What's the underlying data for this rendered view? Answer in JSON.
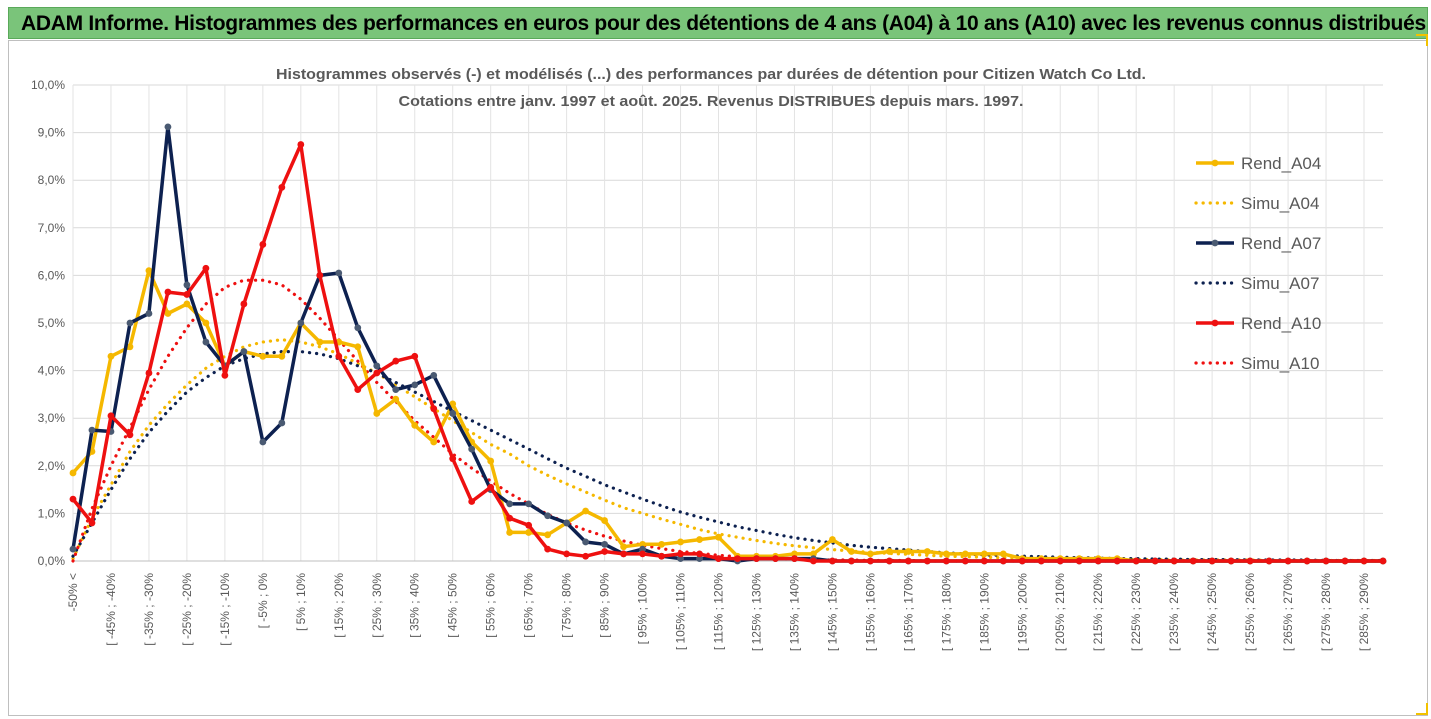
{
  "header": {
    "title": "ADAM Informe. Histogrammes des performances en euros pour des détentions de 4 ans (A04) à 10 ans (A10) avec les revenus connus distribués"
  },
  "colors": {
    "banner": "#7ac47a",
    "A04": "#f5b800",
    "A07": "#0d2150",
    "A10": "#ee1010"
  },
  "chart_data": {
    "type": "line",
    "title": "Histogrammes observés (-) et modélisés (...) des performances par durées de détention pour Citizen Watch Co Ltd.",
    "subtitle": "Cotations entre janv. 1997 et août. 2025. Revenus DISTRIBUES depuis mars. 1997.",
    "ylim": [
      0,
      10
    ],
    "yticks": [
      "0,0%",
      "1,0%",
      "2,0%",
      "3,0%",
      "4,0%",
      "5,0%",
      "6,0%",
      "7,0%",
      "8,0%",
      "9,0%",
      "10,0%"
    ],
    "grid": true,
    "legend_position": "right",
    "x_labels": [
      "-50% <",
      "[ -45% ; -40%",
      "[ -35% ; -30%",
      "[ -25% ; -20%",
      "[ -15% ; -10%",
      "[ -5% ; 0%",
      "[ 5% ; 10%",
      "[ 15% ; 20%",
      "[ 25% ; 30%",
      "[ 35% ; 40%",
      "[ 45% ; 50%",
      "[ 55% ; 60%",
      "[ 65% ; 70%",
      "[ 75% ; 80%",
      "[ 85% ; 90%",
      "[ 95% ; 100%",
      "[ 105% ; 110%",
      "[ 115% ; 120%",
      "[ 125% ; 130%",
      "[ 135% ; 140%",
      "[ 145% ; 150%",
      "[ 155% ; 160%",
      "[ 165% ; 170%",
      "[ 175% ; 180%",
      "[ 185% ; 190%",
      "[ 195% ; 200%",
      "[ 205% ; 210%",
      "[ 215% ; 220%",
      "[ 225% ; 230%",
      "[ 235% ; 240%",
      "[ 245% ; 250%",
      "[ 255% ; 260%",
      "[ 265% ; 270%",
      "[ 275% ; 280%",
      "[ 285% ; 290%"
    ],
    "series": [
      {
        "name": "Rend_A04",
        "style": "solid",
        "color": "#f5b800",
        "values": [
          1.85,
          2.3,
          4.3,
          4.5,
          6.1,
          5.2,
          5.4,
          5.0,
          4.1,
          4.4,
          4.3,
          4.3,
          5.0,
          4.6,
          4.6,
          4.5,
          3.1,
          3.4,
          2.85,
          2.5,
          3.3,
          2.5,
          2.1,
          0.6,
          0.6,
          0.55,
          0.8,
          1.05,
          0.85,
          0.3,
          0.35,
          0.35,
          0.4,
          0.45,
          0.5,
          0.1,
          0.1,
          0.1,
          0.15,
          0.15,
          0.45,
          0.2,
          0.15,
          0.2,
          0.2,
          0.2,
          0.15,
          0.15,
          0.15,
          0.15,
          0.05,
          0.05,
          0.05,
          0.05,
          0.05,
          0.05,
          0.0,
          0.0,
          0.0,
          0.0,
          0.0,
          0.0,
          0.0,
          0.0,
          0.0,
          0.0,
          0.0,
          0.0,
          0.0,
          0.0
        ]
      },
      {
        "name": "Simu_A04",
        "style": "dotted",
        "color": "#f5b800",
        "values": [
          0.05,
          0.9,
          1.6,
          2.3,
          2.85,
          3.3,
          3.7,
          4.05,
          4.3,
          4.5,
          4.6,
          4.65,
          4.6,
          4.5,
          4.35,
          4.15,
          3.95,
          3.7,
          3.45,
          3.2,
          2.95,
          2.7,
          2.45,
          2.25,
          2.0,
          1.8,
          1.62,
          1.45,
          1.28,
          1.12,
          1.0,
          0.88,
          0.77,
          0.66,
          0.57,
          0.5,
          0.43,
          0.37,
          0.32,
          0.28,
          0.24,
          0.21,
          0.18,
          0.16,
          0.14,
          0.12,
          0.1,
          0.09,
          0.08,
          0.07,
          0.06,
          0.05,
          0.05,
          0.04,
          0.04,
          0.03,
          0.03,
          0.03,
          0.02,
          0.02,
          0.02,
          0.02,
          0.02,
          0.01,
          0.01,
          0.01,
          0.01,
          0.01,
          0.01,
          0.01
        ]
      },
      {
        "name": "Rend_A07",
        "style": "solid",
        "color": "#0d2150",
        "values": [
          0.25,
          2.75,
          2.72,
          5.0,
          5.2,
          9.12,
          5.8,
          4.6,
          4.1,
          4.4,
          2.5,
          2.9,
          5.0,
          6.0,
          6.05,
          4.9,
          4.1,
          3.6,
          3.7,
          3.9,
          3.1,
          2.35,
          1.5,
          1.2,
          1.2,
          0.95,
          0.8,
          0.4,
          0.35,
          0.15,
          0.25,
          0.1,
          0.05,
          0.05,
          0.05,
          0.0,
          0.05,
          0.05,
          0.05,
          0.05,
          0.0,
          0.0,
          0.0,
          0.0,
          0.0,
          0.0,
          0.0,
          0.0,
          0.0,
          0.0,
          0.0,
          0.0,
          0.0,
          0.0,
          0.0,
          0.0,
          0.0,
          0.0,
          0.0,
          0.0,
          0.0,
          0.0,
          0.0,
          0.0,
          0.0,
          0.0,
          0.0,
          0.0,
          0.0,
          0.0
        ]
      },
      {
        "name": "Simu_A07",
        "style": "dotted",
        "color": "#0d2150",
        "values": [
          0.1,
          0.8,
          1.5,
          2.15,
          2.7,
          3.15,
          3.55,
          3.85,
          4.1,
          4.25,
          4.35,
          4.4,
          4.4,
          4.35,
          4.25,
          4.1,
          3.95,
          3.75,
          3.55,
          3.35,
          3.15,
          2.95,
          2.75,
          2.55,
          2.35,
          2.15,
          1.95,
          1.78,
          1.6,
          1.45,
          1.3,
          1.16,
          1.03,
          0.92,
          0.82,
          0.72,
          0.64,
          0.56,
          0.49,
          0.43,
          0.38,
          0.33,
          0.29,
          0.26,
          0.23,
          0.2,
          0.17,
          0.15,
          0.13,
          0.12,
          0.1,
          0.09,
          0.08,
          0.07,
          0.06,
          0.05,
          0.05,
          0.04,
          0.04,
          0.03,
          0.03,
          0.03,
          0.02,
          0.02,
          0.02,
          0.02,
          0.01,
          0.01,
          0.01,
          0.01
        ]
      },
      {
        "name": "Rend_A10",
        "style": "solid",
        "color": "#ee1010",
        "values": [
          1.3,
          0.8,
          3.05,
          2.65,
          3.95,
          5.65,
          5.6,
          6.15,
          3.9,
          5.4,
          6.65,
          7.85,
          8.75,
          6.0,
          4.3,
          3.6,
          3.95,
          4.2,
          4.3,
          3.2,
          2.15,
          1.25,
          1.55,
          0.9,
          0.75,
          0.25,
          0.15,
          0.1,
          0.2,
          0.15,
          0.15,
          0.1,
          0.15,
          0.15,
          0.05,
          0.05,
          0.05,
          0.05,
          0.05,
          0.0,
          0.0,
          0.0,
          0.0,
          0.0,
          0.0,
          0.0,
          0.0,
          0.0,
          0.0,
          0.0,
          0.0,
          0.0,
          0.0,
          0.0,
          0.0,
          0.0,
          0.0,
          0.0,
          0.0,
          0.0,
          0.0,
          0.0,
          0.0,
          0.0,
          0.0,
          0.0,
          0.0,
          0.0,
          0.0,
          0.0
        ]
      },
      {
        "name": "Simu_A10",
        "style": "dotted",
        "color": "#ee1010",
        "values": [
          0.0,
          1.1,
          2.0,
          2.8,
          3.6,
          4.3,
          4.9,
          5.4,
          5.75,
          5.9,
          5.9,
          5.8,
          5.5,
          5.1,
          4.65,
          4.2,
          3.75,
          3.35,
          2.95,
          2.6,
          2.25,
          1.95,
          1.68,
          1.42,
          1.2,
          0.98,
          0.8,
          0.65,
          0.52,
          0.42,
          0.33,
          0.26,
          0.2,
          0.16,
          0.12,
          0.09,
          0.07,
          0.05,
          0.04,
          0.03,
          0.02,
          0.02,
          0.01,
          0.01,
          0.01,
          0.0,
          0.0,
          0.0,
          0.0,
          0.0,
          0.0,
          0.0,
          0.0,
          0.0,
          0.0,
          0.0,
          0.0,
          0.0,
          0.0,
          0.0,
          0.0,
          0.0,
          0.0,
          0.0,
          0.0,
          0.0,
          0.0,
          0.0,
          0.0,
          0.0
        ]
      }
    ]
  }
}
